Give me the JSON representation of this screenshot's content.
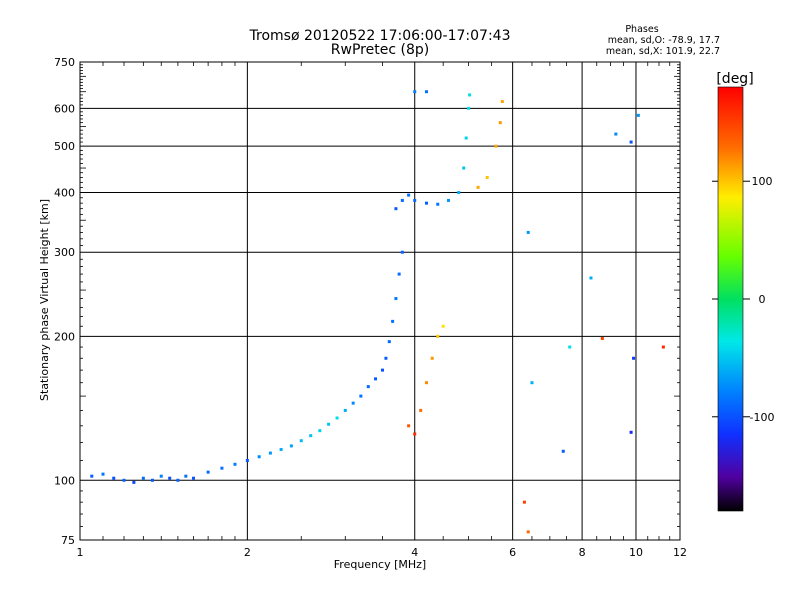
{
  "chart_data": {
    "type": "scatter",
    "title": "Tromsø 20120522 17:06:00-17:07:43",
    "subtitle": "RwPretec (8p)",
    "xlabel": "Frequency [MHz]",
    "ylabel": "Stationary phase Virtual Height [km]",
    "x_scale": "log",
    "y_scale": "log",
    "xlim": [
      1,
      12
    ],
    "ylim": [
      75,
      750
    ],
    "x_ticks": [
      1,
      2,
      4,
      6,
      8,
      10,
      12
    ],
    "y_ticks": [
      75,
      100,
      200,
      300,
      400,
      500,
      600,
      750
    ],
    "grid": true,
    "legend": {
      "title": "Phases",
      "lines": [
        "mean, sd,O: -78.9, 17.7",
        "mean, sd,X: 101.9, 22.7"
      ],
      "placement": "top-right"
    },
    "colorbar": {
      "label": "[deg]",
      "range": [
        -180,
        180
      ],
      "ticks": [
        100,
        0,
        -100
      ]
    },
    "series": [
      {
        "values": [
          [
            1.05,
            102,
            -95
          ],
          [
            1.1,
            103,
            -85
          ],
          [
            1.15,
            101,
            -100
          ],
          [
            1.2,
            100,
            -90
          ],
          [
            1.25,
            99,
            -105
          ],
          [
            1.3,
            101,
            -88
          ],
          [
            1.35,
            100,
            -95
          ],
          [
            1.4,
            102,
            -80
          ],
          [
            1.45,
            101,
            -100
          ],
          [
            1.5,
            100,
            -92
          ],
          [
            1.55,
            102,
            -85
          ],
          [
            1.6,
            101,
            -98
          ],
          [
            1.7,
            104,
            -90
          ],
          [
            1.8,
            106,
            -85
          ],
          [
            1.9,
            108,
            -80
          ],
          [
            2.0,
            110,
            -95
          ],
          [
            2.1,
            112,
            -75
          ],
          [
            2.2,
            114,
            -70
          ],
          [
            2.3,
            116,
            -60
          ],
          [
            2.4,
            118,
            -65
          ],
          [
            2.5,
            121,
            -55
          ],
          [
            2.6,
            124,
            -50
          ],
          [
            2.7,
            127,
            -45
          ],
          [
            2.8,
            131,
            -50
          ],
          [
            2.9,
            135,
            -40
          ],
          [
            3.0,
            140,
            -60
          ],
          [
            3.1,
            145,
            -75
          ],
          [
            3.2,
            150,
            -85
          ],
          [
            3.3,
            157,
            -90
          ],
          [
            3.4,
            163,
            -95
          ],
          [
            3.5,
            170,
            -100
          ],
          [
            3.55,
            180,
            -95
          ],
          [
            3.6,
            195,
            -90
          ],
          [
            3.65,
            215,
            -85
          ],
          [
            3.7,
            240,
            -80
          ],
          [
            3.75,
            270,
            -88
          ],
          [
            3.8,
            300,
            -92
          ],
          [
            3.7,
            370,
            -95
          ],
          [
            3.8,
            385,
            -90
          ],
          [
            3.9,
            395,
            -85
          ],
          [
            4.0,
            385,
            -90
          ],
          [
            4.2,
            380,
            -95
          ],
          [
            4.4,
            378,
            -85
          ],
          [
            4.6,
            385,
            -70
          ],
          [
            4.8,
            400,
            -60
          ],
          [
            4.9,
            450,
            -50
          ],
          [
            4.95,
            520,
            -45
          ],
          [
            5.0,
            600,
            -40
          ],
          [
            5.02,
            640,
            -40
          ],
          [
            3.9,
            130,
            140
          ],
          [
            4.0,
            125,
            160
          ],
          [
            4.1,
            140,
            130
          ],
          [
            4.2,
            160,
            120
          ],
          [
            4.3,
            180,
            115
          ],
          [
            4.4,
            200,
            100
          ],
          [
            4.5,
            210,
            90
          ],
          [
            5.2,
            410,
            110
          ],
          [
            5.4,
            430,
            100
          ],
          [
            5.6,
            500,
            110
          ],
          [
            5.7,
            560,
            115
          ],
          [
            5.75,
            620,
            110
          ],
          [
            4.0,
            650,
            -80
          ],
          [
            4.2,
            650,
            -85
          ],
          [
            6.4,
            330,
            -70
          ],
          [
            6.5,
            160,
            -60
          ],
          [
            8.3,
            265,
            -60
          ],
          [
            9.2,
            530,
            -75
          ],
          [
            9.8,
            510,
            -100
          ],
          [
            10.1,
            580,
            -70
          ],
          [
            9.9,
            180,
            -110
          ],
          [
            9.8,
            126,
            -120
          ],
          [
            7.6,
            190,
            -40
          ],
          [
            7.4,
            115,
            -95
          ],
          [
            6.3,
            90,
            150
          ],
          [
            6.4,
            78,
            130
          ],
          [
            11.2,
            190,
            160
          ],
          [
            8.7,
            198,
            150
          ]
        ]
      }
    ]
  }
}
